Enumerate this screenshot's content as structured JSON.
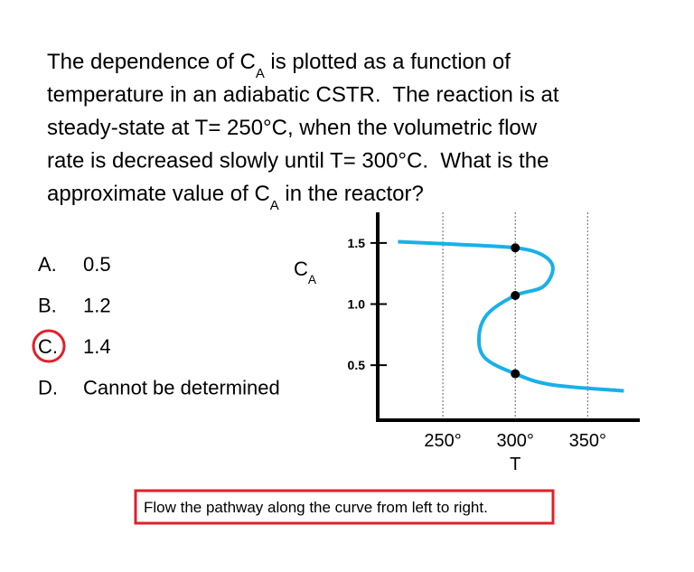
{
  "question": [
    [
      {
        "text": "The dependence of C"
      },
      {
        "text": "A",
        "sub": true
      },
      {
        "text": " is plotted as a function of"
      }
    ],
    [
      {
        "text": "temperature in an adiabatic CSTR.  The reaction is at"
      }
    ],
    [
      {
        "text": "steady-state at T= 250°C, when the volumetric flow"
      }
    ],
    [
      {
        "text": "rate is decreased slowly until T= 300°C.  What is the"
      }
    ],
    [
      {
        "text": "approximate value of C"
      },
      {
        "text": "A",
        "sub": true
      },
      {
        "text": " in the reactor?"
      }
    ]
  ],
  "options": [
    {
      "letter": "A.",
      "text": "0.5"
    },
    {
      "letter": "B.",
      "text": "1.2"
    },
    {
      "letter": "C.",
      "text": "1.4"
    },
    {
      "letter": "D.",
      "text": "Cannot be determined"
    }
  ],
  "selected": 2,
  "note": "Flow the pathway along the curve from left to right.",
  "chart_data": {
    "type": "line",
    "y_label": [
      {
        "text": "C"
      },
      {
        "text": "A",
        "sub": true
      }
    ],
    "x_label": "T",
    "xlim": [
      205,
      386
    ],
    "ylim": [
      0.05,
      1.75
    ],
    "xticks": [
      {
        "value": 250,
        "label": "250°"
      },
      {
        "value": 300,
        "label": "300°"
      },
      {
        "value": 350,
        "label": "350°"
      }
    ],
    "yticks": [
      1.5,
      {
        "value": 1,
        "label": "1.0"
      },
      0.5
    ],
    "grid": true,
    "curve": {
      "color": "#1ab0e8",
      "x": [
        219,
        256,
        300,
        319,
        326,
        319,
        300,
        281,
        275,
        279,
        300,
        325,
        375
      ],
      "y": [
        1.51,
        1.49,
        1.46,
        1.4,
        1.29,
        1.14,
        1.07,
        0.92,
        0.74,
        0.56,
        0.43,
        0.34,
        0.29
      ]
    },
    "points": {
      "color": "#000000",
      "x": [
        300,
        300,
        300
      ],
      "y": [
        1.46,
        1.07,
        0.43
      ]
    }
  }
}
